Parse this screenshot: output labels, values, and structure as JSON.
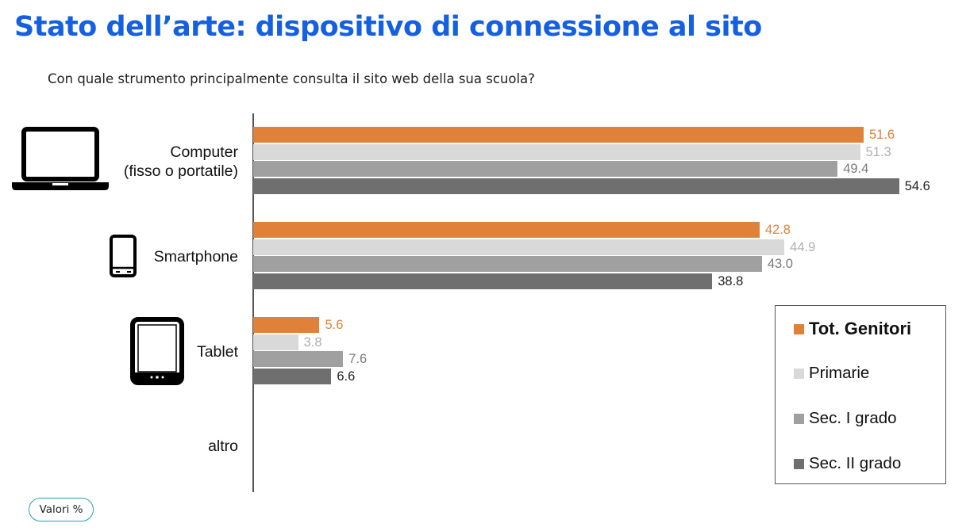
{
  "header": {
    "title": "Stato dell’arte: dispositivo di connessione al sito",
    "subtitle": "Con quale strumento principalmente consulta il sito web della sua scuola?"
  },
  "badge": {
    "label": "Valori %"
  },
  "colors": {
    "tot": "#e0813a",
    "primarie": "#d9d9d9",
    "sec1": "#a0a0a0",
    "sec2": "#6f6f6f",
    "title": "#1560e0"
  },
  "icons": [
    "laptop-icon",
    "smartphone-icon",
    "tablet-icon"
  ],
  "chart_data": {
    "type": "bar",
    "orientation": "horizontal",
    "categories": [
      "Computer\n(fisso o portatile)",
      "Smartphone",
      "Tablet",
      "altro"
    ],
    "series": [
      {
        "name": "Tot. Genitori",
        "values": [
          51.6,
          42.8,
          5.6,
          null
        ]
      },
      {
        "name": "Primarie",
        "values": [
          51.3,
          44.9,
          3.8,
          null
        ]
      },
      {
        "name": "Sec. I grado",
        "values": [
          49.4,
          43.0,
          7.6,
          null
        ]
      },
      {
        "name": "Sec. II grado",
        "values": [
          54.6,
          38.8,
          6.6,
          null
        ]
      }
    ],
    "value_labels": [
      [
        "51.6",
        "42.8",
        "5.6",
        ""
      ],
      [
        "51.3",
        "44.9",
        "3.8",
        ""
      ],
      [
        "49.4",
        "43.0",
        "7.6",
        ""
      ],
      [
        "54.6",
        "38.8",
        "6.6",
        ""
      ]
    ],
    "xlim": [
      0,
      65
    ],
    "grid": false,
    "legend_position": "bottom-right"
  }
}
